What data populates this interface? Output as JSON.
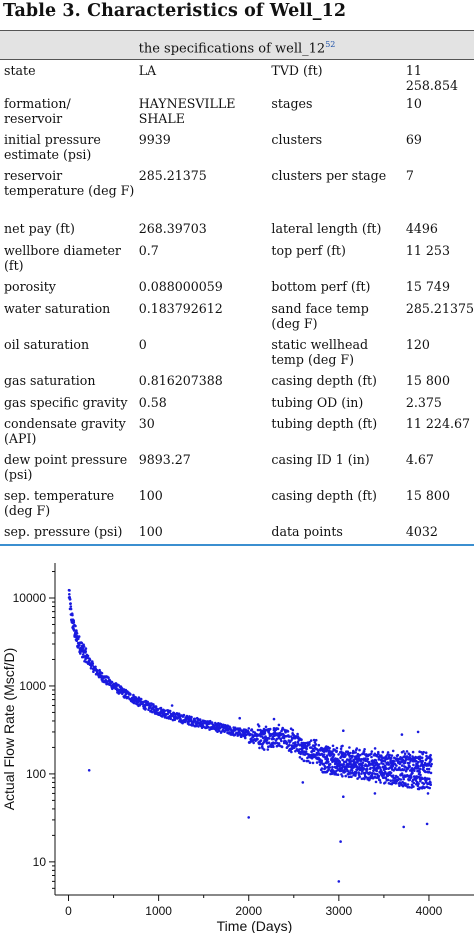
{
  "title": {
    "prefix": "Table 3.",
    "text": "Characteristics of Well_12"
  },
  "caption": {
    "text": "the specifications of well_12",
    "ref": "52"
  },
  "rows": [
    {
      "p1": "state",
      "v1": "LA",
      "p2": "TVD (ft)",
      "v2": "11 258.854",
      "h": 21
    },
    {
      "p1": "formation/  reservoir",
      "v1": "HAYNESVILLE SHALE",
      "p2": "stages",
      "v2": "10",
      "h": 36
    },
    {
      "p1": "initial pressure estimate (psi)",
      "v1": "9939",
      "p2": "clusters",
      "v2": "69",
      "h": 36
    },
    {
      "p1": "reservoir temperature (deg F)",
      "v1": "285.21375",
      "p2": "clusters per stage",
      "v2": "7",
      "h": 53
    },
    {
      "p1": "net pay (ft)",
      "v1": "268.39703",
      "p2": "lateral length (ft)",
      "v2": "4496",
      "h": 22
    },
    {
      "p1": "wellbore diameter (ft)",
      "v1": "0.7",
      "p2": "top perf (ft)",
      "v2": "11 253",
      "h": 36
    },
    {
      "p1": "porosity",
      "v1": "0.088000059",
      "p2": "bottom perf (ft)",
      "v2": "15 749",
      "h": 22
    },
    {
      "p1": "water saturation",
      "v1": "0.183792612",
      "p2": "sand face temp (deg F)",
      "v2": "285.21375",
      "h": 36
    },
    {
      "p1": "oil saturation",
      "v1": "0",
      "p2": "static wellhead temp (deg F)",
      "v2": "120",
      "h": 36
    },
    {
      "p1": "gas saturation",
      "v1": "0.816207388",
      "p2": "casing depth (ft)",
      "v2": "15 800",
      "h": 22
    },
    {
      "p1": "gas specific gravity",
      "v1": "0.58",
      "p2": "tubing OD (in)",
      "v2": "2.375",
      "h": 21
    },
    {
      "p1": "condensate gravity (API)",
      "v1": "30",
      "p2": "tubing depth (ft)",
      "v2": "11 224.67",
      "h": 36
    },
    {
      "p1": "dew point pressure (psi)",
      "v1": "9893.27",
      "p2": "casing ID 1 (in)",
      "v2": "4.67",
      "h": 36
    },
    {
      "p1": "sep. temperature (deg F)",
      "v1": "100",
      "p2": "casing depth (ft)",
      "v2": "15 800",
      "h": 36
    },
    {
      "p1": "sep. pressure (psi)",
      "v1": "100",
      "p2": "data points",
      "v2": "4032",
      "h": 22
    }
  ],
  "chart_data": {
    "type": "scatter",
    "xlabel": "Time (Days)",
    "ylabel": "Actual Flow Rate (Mscf/D)",
    "x_ticks": [
      0,
      1000,
      2000,
      3000,
      4000
    ],
    "y_ticks": [
      10,
      100,
      1000,
      10000
    ],
    "x_range": [
      -150,
      4500
    ],
    "y_range": [
      4.2,
      25000
    ],
    "y_scale": "log",
    "color": "#1a1adf",
    "sample_points": [
      {
        "x": 5,
        "y": 11500
      },
      {
        "x": 15,
        "y": 9000
      },
      {
        "x": 30,
        "y": 6500
      },
      {
        "x": 60,
        "y": 4500
      },
      {
        "x": 100,
        "y": 3300
      },
      {
        "x": 200,
        "y": 2100
      },
      {
        "x": 300,
        "y": 1500
      },
      {
        "x": 400,
        "y": 1200
      },
      {
        "x": 600,
        "y": 850
      },
      {
        "x": 800,
        "y": 640
      },
      {
        "x": 1000,
        "y": 520
      },
      {
        "x": 1200,
        "y": 440
      },
      {
        "x": 1500,
        "y": 370
      },
      {
        "x": 1800,
        "y": 310
      },
      {
        "x": 2000,
        "y": 280
      },
      {
        "x": 2200,
        "y": 260
      },
      {
        "x": 2400,
        "y": 260
      },
      {
        "x": 2600,
        "y": 200
      },
      {
        "x": 2800,
        "y": 170
      },
      {
        "x": 3000,
        "y": 150
      },
      {
        "x": 3300,
        "y": 140
      },
      {
        "x": 3600,
        "y": 135
      },
      {
        "x": 3800,
        "y": 130
      },
      {
        "x": 4000,
        "y": 125
      }
    ],
    "lower_band": {
      "x_start": 2800,
      "x_end": 4020,
      "y_start": 120,
      "y_end": 75
    },
    "outliers": [
      {
        "x": 230,
        "y": 110
      },
      {
        "x": 2000,
        "y": 32
      },
      {
        "x": 3020,
        "y": 17
      },
      {
        "x": 3000,
        "y": 6
      },
      {
        "x": 3050,
        "y": 55
      },
      {
        "x": 3720,
        "y": 25
      },
      {
        "x": 3980,
        "y": 27
      },
      {
        "x": 3990,
        "y": 60
      },
      {
        "x": 3050,
        "y": 310
      },
      {
        "x": 3700,
        "y": 280
      },
      {
        "x": 3880,
        "y": 300
      },
      {
        "x": 1900,
        "y": 430
      },
      {
        "x": 2280,
        "y": 420
      },
      {
        "x": 1150,
        "y": 600
      },
      {
        "x": 2600,
        "y": 80
      },
      {
        "x": 3400,
        "y": 60
      }
    ]
  }
}
